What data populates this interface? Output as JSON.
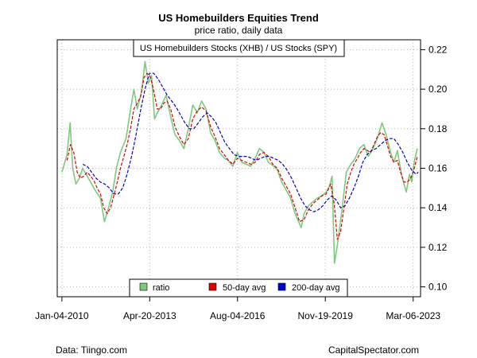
{
  "chart_data": {
    "type": "line",
    "title": "US Homebuilders Equities Trend",
    "subtitle": "price ratio, daily data",
    "series_label": "US Homebuilders Stocks (XHB) / US Stocks (SPY)",
    "x_ticks": [
      "Jan-04-2010",
      "Apr-20-2013",
      "Aug-04-2016",
      "Nov-19-2019",
      "Mar-06-2023"
    ],
    "y_ticks": [
      0.1,
      0.12,
      0.14,
      0.16,
      0.18,
      0.2,
      0.22
    ],
    "ylim": [
      0.095,
      0.225
    ],
    "xlim": [
      "2009-11-01",
      "2023-06-15"
    ],
    "grid": true,
    "legend_position": "bottom-center",
    "series": [
      {
        "name": "ratio",
        "color": "#7fc97f",
        "dash": false,
        "x": [
          "2010-01-04",
          "2010-03-15",
          "2010-04-26",
          "2010-06-01",
          "2010-07-15",
          "2010-09-01",
          "2010-10-15",
          "2010-12-01",
          "2011-02-01",
          "2011-04-01",
          "2011-06-15",
          "2011-08-10",
          "2011-10-04",
          "2011-12-01",
          "2012-01-20",
          "2012-03-15",
          "2012-06-01",
          "2012-07-20",
          "2012-09-15",
          "2012-11-01",
          "2013-01-01",
          "2013-02-15",
          "2013-04-01",
          "2013-05-15",
          "2013-06-25",
          "2013-08-15",
          "2013-10-01",
          "2013-12-01",
          "2014-02-01",
          "2014-04-01",
          "2014-06-01",
          "2014-08-01",
          "2014-10-01",
          "2014-12-01",
          "2015-02-01",
          "2015-04-01",
          "2015-06-01",
          "2015-08-01",
          "2015-10-01",
          "2015-12-01",
          "2016-02-11",
          "2016-04-01",
          "2016-06-01",
          "2016-08-01",
          "2016-10-01",
          "2016-12-01",
          "2017-02-01",
          "2017-04-01",
          "2017-06-01",
          "2017-08-01",
          "2017-10-01",
          "2017-12-15",
          "2018-02-01",
          "2018-04-01",
          "2018-06-01",
          "2018-08-01",
          "2018-10-01",
          "2018-12-24",
          "2019-02-01",
          "2019-04-01",
          "2019-06-01",
          "2019-08-01",
          "2019-10-01",
          "2019-12-01",
          "2020-01-15",
          "2020-02-20",
          "2020-03-23",
          "2020-05-01",
          "2020-07-01",
          "2020-09-01",
          "2020-11-01",
          "2021-01-01",
          "2021-03-01",
          "2021-05-01",
          "2021-07-01",
          "2021-09-01",
          "2021-11-01",
          "2022-01-03",
          "2022-03-01",
          "2022-05-01",
          "2022-06-16",
          "2022-08-01",
          "2022-10-01",
          "2022-12-01",
          "2023-01-15",
          "2023-02-15",
          "2023-03-06",
          "2023-04-01",
          "2023-05-01"
        ],
        "values": [
          0.158,
          0.167,
          0.183,
          0.16,
          0.152,
          0.155,
          0.16,
          0.157,
          0.153,
          0.149,
          0.145,
          0.133,
          0.14,
          0.148,
          0.16,
          0.168,
          0.175,
          0.187,
          0.2,
          0.19,
          0.199,
          0.214,
          0.203,
          0.207,
          0.185,
          0.189,
          0.192,
          0.197,
          0.186,
          0.177,
          0.174,
          0.17,
          0.18,
          0.192,
          0.188,
          0.194,
          0.19,
          0.178,
          0.174,
          0.168,
          0.165,
          0.164,
          0.161,
          0.168,
          0.163,
          0.162,
          0.161,
          0.165,
          0.17,
          0.168,
          0.163,
          0.161,
          0.159,
          0.153,
          0.149,
          0.145,
          0.137,
          0.13,
          0.137,
          0.141,
          0.143,
          0.145,
          0.146,
          0.148,
          0.151,
          0.156,
          0.112,
          0.121,
          0.138,
          0.158,
          0.162,
          0.165,
          0.17,
          0.172,
          0.166,
          0.17,
          0.175,
          0.183,
          0.177,
          0.168,
          0.163,
          0.169,
          0.156,
          0.148,
          0.157,
          0.153,
          0.16,
          0.165,
          0.17
        ]
      },
      {
        "name": "50-day avg",
        "color": "#dd0000",
        "dash": true,
        "x": [
          "2010-03-15",
          "2010-05-01",
          "2010-06-15",
          "2010-08-01",
          "2010-09-15",
          "2010-11-01",
          "2010-12-15",
          "2011-02-01",
          "2011-03-15",
          "2011-05-01",
          "2011-06-15",
          "2011-08-01",
          "2011-09-15",
          "2011-11-01",
          "2011-12-15",
          "2012-02-01",
          "2012-03-15",
          "2012-05-01",
          "2012-06-15",
          "2012-08-01",
          "2012-09-15",
          "2012-11-01",
          "2012-12-15",
          "2013-02-01",
          "2013-03-15",
          "2013-05-01",
          "2013-06-15",
          "2013-08-01",
          "2013-09-15",
          "2013-11-01",
          "2013-12-15",
          "2014-02-01",
          "2014-04-01",
          "2014-06-01",
          "2014-08-01",
          "2014-10-01",
          "2014-12-01",
          "2015-02-01",
          "2015-04-01",
          "2015-06-01",
          "2015-08-01",
          "2015-10-01",
          "2015-12-01",
          "2016-02-01",
          "2016-04-01",
          "2016-06-01",
          "2016-08-01",
          "2016-10-01",
          "2016-12-01",
          "2017-02-01",
          "2017-04-01",
          "2017-06-01",
          "2017-08-01",
          "2017-10-01",
          "2017-12-01",
          "2018-02-01",
          "2018-04-01",
          "2018-06-01",
          "2018-08-01",
          "2018-10-01",
          "2018-12-01",
          "2019-02-01",
          "2019-04-01",
          "2019-06-01",
          "2019-08-01",
          "2019-10-01",
          "2019-12-01",
          "2020-02-01",
          "2020-03-20",
          "2020-05-01",
          "2020-06-15",
          "2020-08-01",
          "2020-09-15",
          "2020-11-01",
          "2020-12-15",
          "2021-02-01",
          "2021-03-15",
          "2021-05-01",
          "2021-06-15",
          "2021-08-01",
          "2021-09-15",
          "2021-11-01",
          "2021-12-15",
          "2022-02-01",
          "2022-03-15",
          "2022-05-01",
          "2022-06-15",
          "2022-08-01",
          "2022-09-15",
          "2022-11-01",
          "2022-12-15",
          "2023-02-01",
          "2023-03-15",
          "2023-05-01"
        ],
        "values": [
          0.164,
          0.172,
          0.168,
          0.158,
          0.155,
          0.156,
          0.158,
          0.156,
          0.154,
          0.15,
          0.147,
          0.14,
          0.137,
          0.14,
          0.146,
          0.153,
          0.16,
          0.166,
          0.172,
          0.18,
          0.19,
          0.193,
          0.196,
          0.206,
          0.208,
          0.206,
          0.199,
          0.19,
          0.19,
          0.193,
          0.194,
          0.19,
          0.181,
          0.176,
          0.172,
          0.175,
          0.185,
          0.189,
          0.191,
          0.189,
          0.181,
          0.176,
          0.17,
          0.167,
          0.164,
          0.162,
          0.165,
          0.164,
          0.163,
          0.162,
          0.163,
          0.167,
          0.168,
          0.166,
          0.162,
          0.16,
          0.155,
          0.151,
          0.147,
          0.14,
          0.133,
          0.134,
          0.139,
          0.142,
          0.144,
          0.146,
          0.147,
          0.152,
          0.142,
          0.124,
          0.128,
          0.14,
          0.152,
          0.158,
          0.162,
          0.165,
          0.168,
          0.17,
          0.169,
          0.168,
          0.172,
          0.176,
          0.178,
          0.177,
          0.172,
          0.166,
          0.163,
          0.164,
          0.158,
          0.153,
          0.153,
          0.155,
          0.159,
          0.166
        ]
      },
      {
        "name": "200-day avg",
        "color": "#0000cc",
        "dash": true,
        "x": [
          "2010-10-15",
          "2010-12-15",
          "2011-02-15",
          "2011-04-15",
          "2011-06-15",
          "2011-08-15",
          "2011-10-15",
          "2011-12-15",
          "2012-02-15",
          "2012-04-15",
          "2012-06-15",
          "2012-08-15",
          "2012-10-15",
          "2012-12-15",
          "2013-02-15",
          "2013-04-15",
          "2013-06-15",
          "2013-08-15",
          "2013-10-15",
          "2013-12-15",
          "2014-02-15",
          "2014-04-15",
          "2014-06-15",
          "2014-08-15",
          "2014-10-15",
          "2014-12-15",
          "2015-02-15",
          "2015-04-15",
          "2015-06-15",
          "2015-08-15",
          "2015-10-15",
          "2015-12-15",
          "2016-02-15",
          "2016-04-15",
          "2016-06-15",
          "2016-08-15",
          "2016-10-15",
          "2016-12-15",
          "2017-02-15",
          "2017-04-15",
          "2017-06-15",
          "2017-08-15",
          "2017-10-15",
          "2017-12-15",
          "2018-02-15",
          "2018-04-15",
          "2018-06-15",
          "2018-08-15",
          "2018-10-15",
          "2018-12-15",
          "2019-02-15",
          "2019-04-15",
          "2019-06-15",
          "2019-08-15",
          "2019-10-15",
          "2019-12-15",
          "2020-02-15",
          "2020-04-15",
          "2020-06-15",
          "2020-08-15",
          "2020-10-15",
          "2020-12-15",
          "2021-02-15",
          "2021-04-15",
          "2021-06-15",
          "2021-08-15",
          "2021-10-15",
          "2021-12-15",
          "2022-02-15",
          "2022-04-15",
          "2022-06-15",
          "2022-08-15",
          "2022-10-15",
          "2022-12-15",
          "2023-02-15",
          "2023-04-15",
          "2023-05-15"
        ],
        "values": [
          0.162,
          0.161,
          0.158,
          0.155,
          0.153,
          0.152,
          0.15,
          0.147,
          0.147,
          0.15,
          0.157,
          0.166,
          0.177,
          0.189,
          0.2,
          0.208,
          0.208,
          0.205,
          0.201,
          0.197,
          0.194,
          0.191,
          0.187,
          0.183,
          0.18,
          0.18,
          0.183,
          0.186,
          0.188,
          0.186,
          0.183,
          0.178,
          0.173,
          0.17,
          0.167,
          0.166,
          0.166,
          0.166,
          0.165,
          0.164,
          0.165,
          0.166,
          0.166,
          0.165,
          0.164,
          0.162,
          0.159,
          0.155,
          0.15,
          0.145,
          0.141,
          0.139,
          0.138,
          0.139,
          0.141,
          0.144,
          0.146,
          0.144,
          0.14,
          0.141,
          0.145,
          0.15,
          0.156,
          0.163,
          0.167,
          0.169,
          0.17,
          0.172,
          0.174,
          0.175,
          0.175,
          0.172,
          0.168,
          0.163,
          0.159,
          0.157,
          0.158
        ]
      }
    ]
  },
  "footer": {
    "left": "Data: Tiingo.com",
    "right": "CapitalSpectator.com"
  }
}
